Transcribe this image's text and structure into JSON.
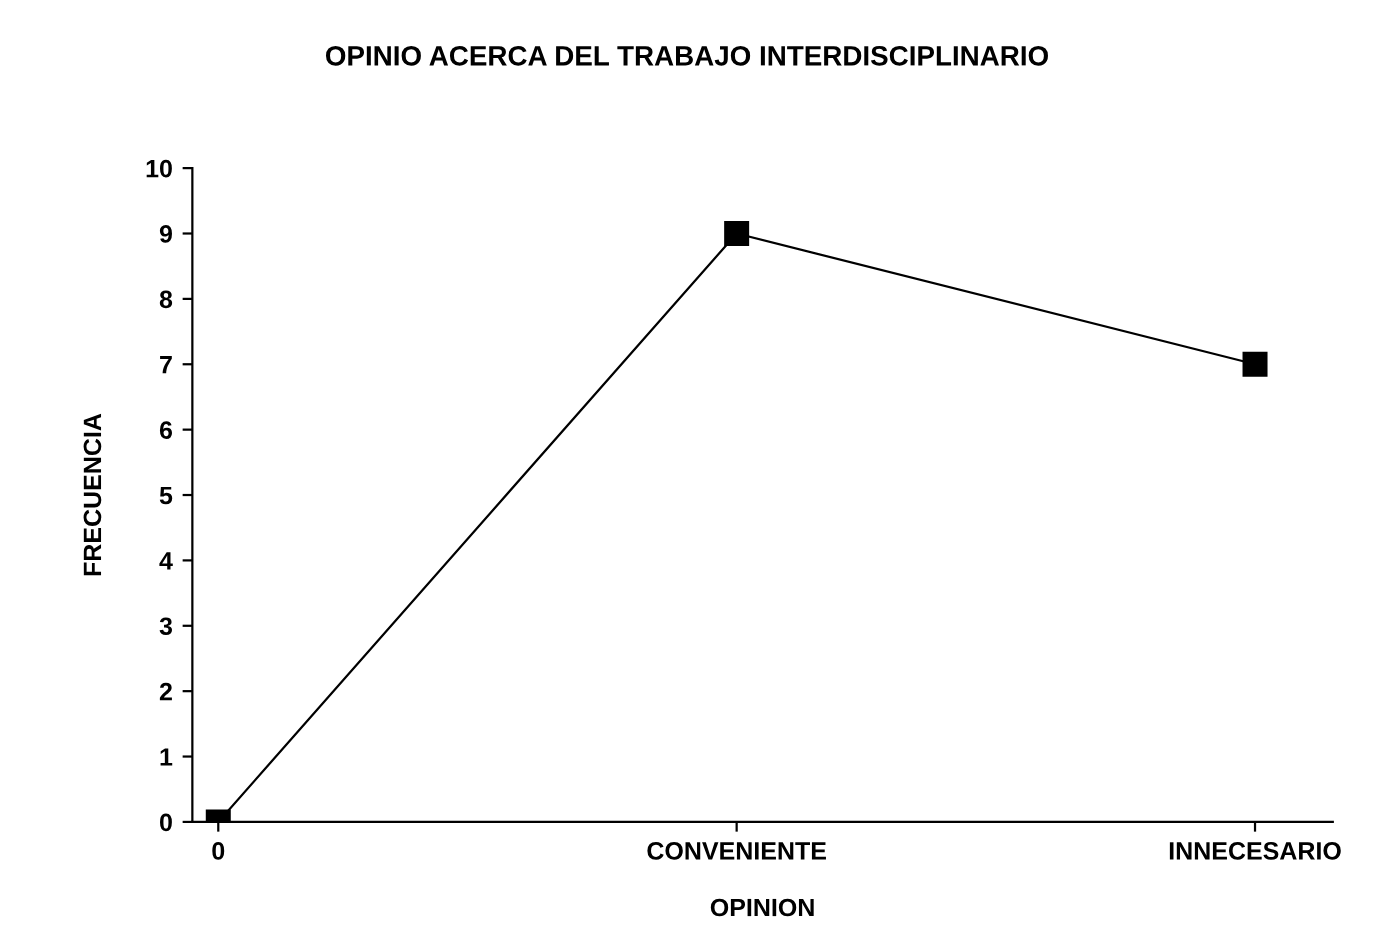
{
  "chart_data": {
    "type": "line",
    "title": "OPINIO ACERCA DEL TRABAJO INTERDISCIPLINARIO",
    "xlabel": "OPINION",
    "ylabel": "FRECUENCIA",
    "categories": [
      "0",
      "CONVENIENTE",
      "INNECESARIO"
    ],
    "series": [
      {
        "color": "#000000",
        "values": [
          0,
          9,
          7
        ]
      }
    ],
    "ylim": [
      0,
      10
    ],
    "yticks": [
      0,
      1,
      2,
      3,
      4,
      5,
      6,
      7,
      8,
      9,
      10
    ],
    "marker": "square",
    "line_style": "solid",
    "grid": false,
    "legend": false
  }
}
